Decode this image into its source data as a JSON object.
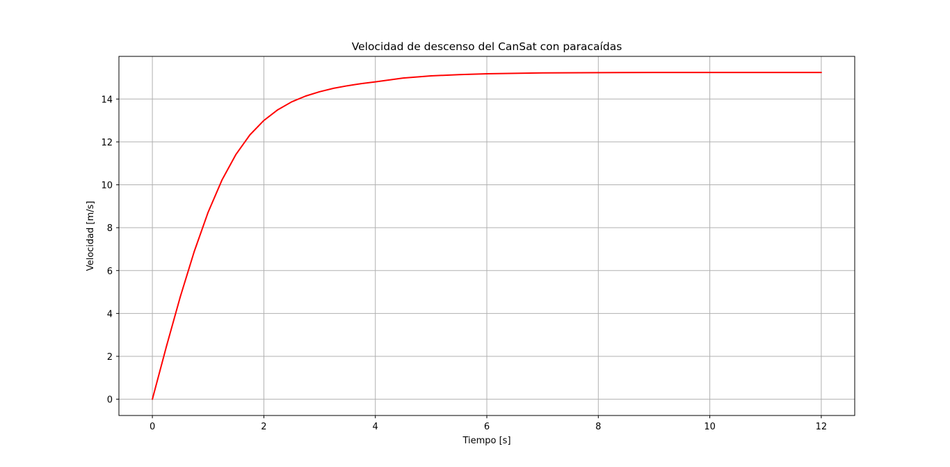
{
  "chart_data": {
    "type": "line",
    "title": "Velocidad de descenso del CanSat con paracaídas",
    "xlabel": "Tiempo [s]",
    "ylabel": "Velocidad [m/s]",
    "xlim": [
      -0.6,
      12.6
    ],
    "ylim": [
      -0.76,
      15.99
    ],
    "xticks": [
      0,
      2,
      4,
      6,
      8,
      10,
      12
    ],
    "yticks": [
      0,
      2,
      4,
      6,
      8,
      10,
      12,
      14
    ],
    "grid": true,
    "series": [
      {
        "color": "#ff0000",
        "x": [
          0,
          0.25,
          0.5,
          0.75,
          1.0,
          1.25,
          1.5,
          1.75,
          2.0,
          2.25,
          2.5,
          2.75,
          3.0,
          3.25,
          3.5,
          3.75,
          4.0,
          4.5,
          5.0,
          5.5,
          6.0,
          7.0,
          8.0,
          9.0,
          10.0,
          11.0,
          12.0
        ],
        "y": [
          0,
          2.44,
          4.77,
          6.88,
          8.72,
          10.23,
          11.42,
          12.33,
          13.0,
          13.5,
          13.87,
          14.14,
          14.34,
          14.5,
          14.62,
          14.72,
          14.8,
          14.98,
          15.08,
          15.14,
          15.18,
          15.22,
          15.23,
          15.24,
          15.24,
          15.24,
          15.24
        ]
      }
    ]
  }
}
